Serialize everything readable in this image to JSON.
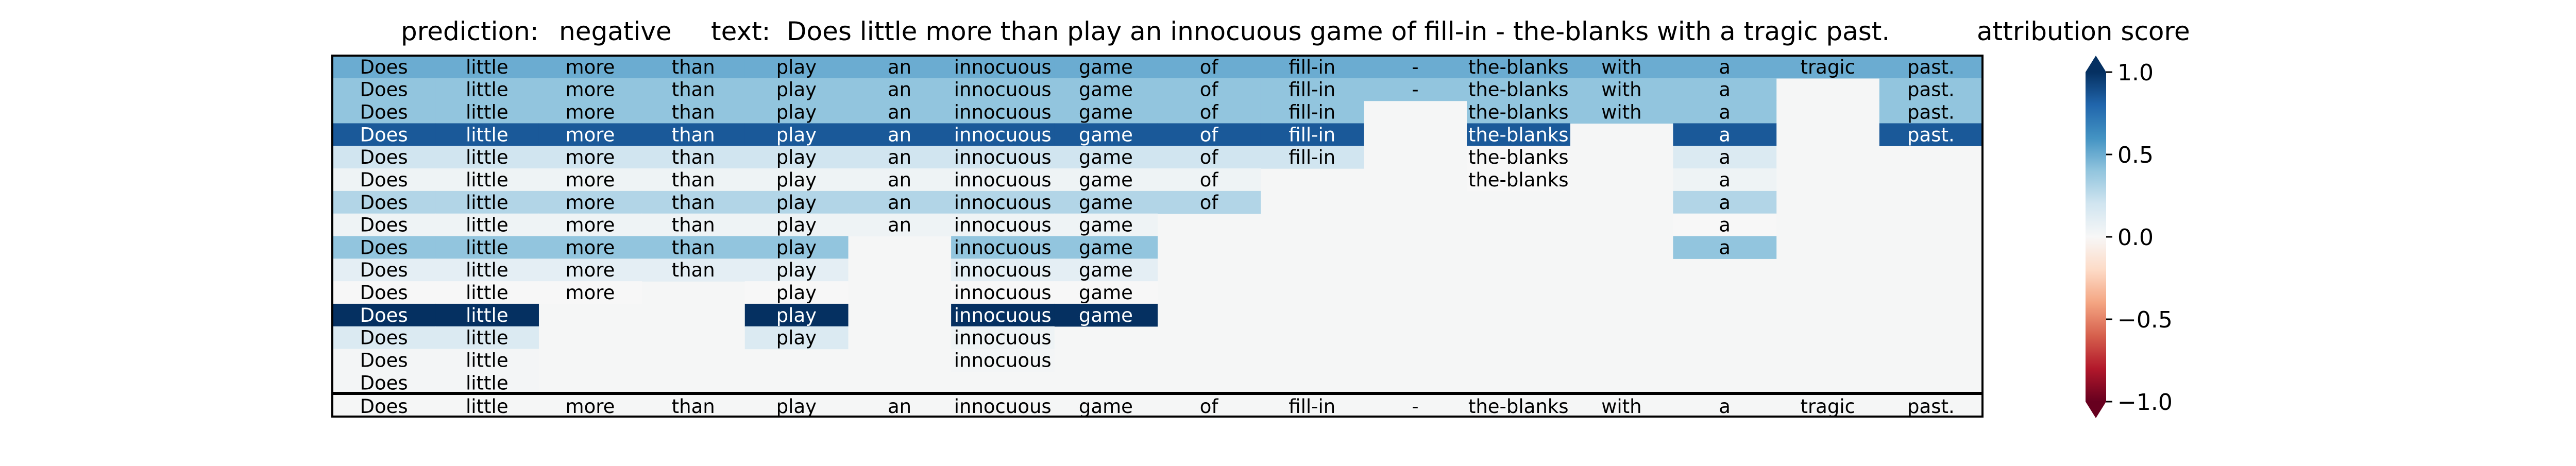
{
  "chart_data": {
    "type": "heatmap",
    "title": {
      "prediction_label": "prediction:",
      "prediction_value": "negative",
      "text_label": "text:",
      "text_value": "Does little more than play an innocuous game of fill-in - the-blanks with a tragic past."
    },
    "tokens": [
      "Does",
      "little",
      "more",
      "than",
      "play",
      "an",
      "innocuous",
      "game",
      "of",
      "fill-in",
      "-",
      "the-blanks",
      "with",
      "a",
      "tragic",
      "past."
    ],
    "rows": [
      [
        0.5,
        0.5,
        0.5,
        0.5,
        0.5,
        0.5,
        0.5,
        0.5,
        0.5,
        0.5,
        0.5,
        0.5,
        0.5,
        0.5,
        0.5,
        0.5
      ],
      [
        0.4,
        0.4,
        0.4,
        0.4,
        0.4,
        0.4,
        0.4,
        0.4,
        0.4,
        0.4,
        0.4,
        0.4,
        0.4,
        0.4,
        null,
        0.4
      ],
      [
        0.4,
        0.4,
        0.4,
        0.4,
        0.4,
        0.4,
        0.4,
        0.4,
        0.4,
        0.4,
        null,
        0.4,
        0.4,
        0.4,
        null,
        0.4
      ],
      [
        0.85,
        0.85,
        0.85,
        0.85,
        0.85,
        0.85,
        0.85,
        0.85,
        0.85,
        0.85,
        null,
        0.85,
        null,
        0.85,
        null,
        0.85
      ],
      [
        0.2,
        0.2,
        0.2,
        0.2,
        0.2,
        0.2,
        0.2,
        0.2,
        0.2,
        0.2,
        null,
        0.0,
        null,
        0.15,
        null,
        null
      ],
      [
        0.05,
        0.05,
        0.05,
        0.05,
        0.05,
        0.05,
        0.05,
        0.05,
        0.05,
        null,
        null,
        0.0,
        null,
        0.05,
        null,
        null
      ],
      [
        0.3,
        0.3,
        0.3,
        0.3,
        0.3,
        0.3,
        0.3,
        0.3,
        0.3,
        null,
        null,
        null,
        null,
        0.3,
        null,
        null
      ],
      [
        0.05,
        0.05,
        0.05,
        0.05,
        0.05,
        0.05,
        0.05,
        0.05,
        null,
        null,
        null,
        null,
        null,
        0.0,
        null,
        null
      ],
      [
        0.4,
        0.4,
        0.4,
        0.4,
        0.4,
        null,
        0.4,
        0.4,
        null,
        null,
        null,
        null,
        null,
        0.4,
        null,
        null
      ],
      [
        0.1,
        0.1,
        0.1,
        0.1,
        0.1,
        null,
        0.1,
        0.1,
        null,
        null,
        null,
        null,
        null,
        null,
        null,
        null
      ],
      [
        0.0,
        0.0,
        0.0,
        null,
        0.0,
        null,
        0.0,
        0.0,
        null,
        null,
        null,
        null,
        null,
        null,
        null,
        null
      ],
      [
        1.0,
        1.0,
        null,
        null,
        1.0,
        null,
        1.0,
        1.0,
        null,
        null,
        null,
        null,
        null,
        null,
        null,
        null
      ],
      [
        0.15,
        0.15,
        null,
        null,
        0.15,
        null,
        0.05,
        null,
        null,
        null,
        null,
        null,
        null,
        null,
        null,
        null
      ],
      [
        0.02,
        0.02,
        null,
        null,
        null,
        null,
        0.02,
        null,
        null,
        null,
        null,
        null,
        null,
        null,
        null,
        null
      ],
      [
        0.02,
        0.02,
        null,
        null,
        null,
        null,
        null,
        null,
        null,
        null,
        null,
        null,
        null,
        null,
        null,
        null
      ]
    ],
    "colorbar": {
      "label": "attribution score",
      "min": -1.0,
      "max": 1.0,
      "tick_values": [
        1.0,
        0.5,
        0.0,
        -0.5,
        -1.0
      ],
      "tick_labels": [
        "1.0",
        "0.5",
        "0.0",
        "−0.5",
        "−1.0"
      ],
      "colormap": "RdBu"
    },
    "empty_cell_color": "#f5f6f6"
  }
}
